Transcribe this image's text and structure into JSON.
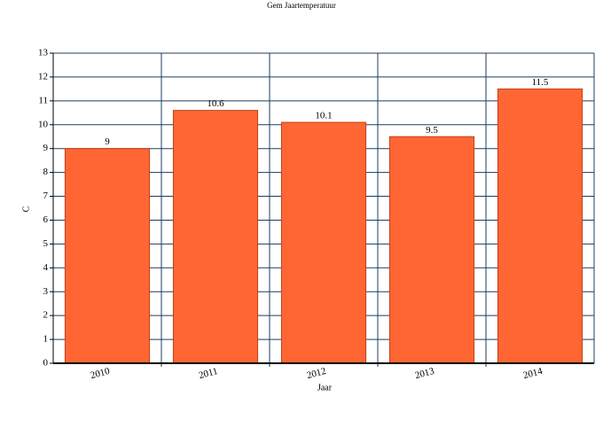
{
  "chart_data": {
    "type": "bar",
    "title": "Gem Jaartemperatuur",
    "x_label": "Jaar",
    "y_label": "C",
    "categories": [
      "2010",
      "2011",
      "2012",
      "2013",
      "2014"
    ],
    "values": [
      9,
      10.6,
      10.1,
      9.5,
      11.5
    ],
    "color": "#ff6633",
    "ylim": [
      0,
      13
    ],
    "yticks": [
      0,
      1,
      2,
      3,
      4,
      5,
      6,
      7,
      8,
      9,
      10,
      11,
      12,
      13
    ],
    "grid": true
  }
}
